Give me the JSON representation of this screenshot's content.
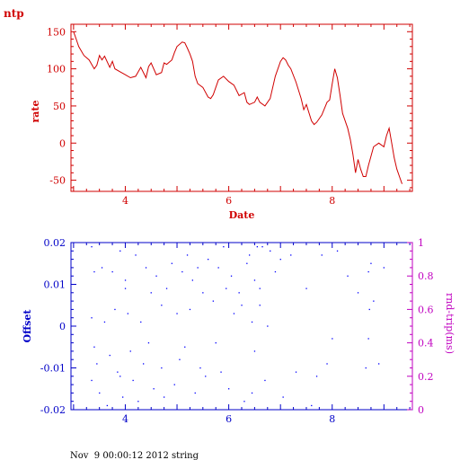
{
  "colors": {
    "top_axes": "#d00000",
    "bottom_axes": "#0000c8",
    "right_axis": "#c000c0",
    "points": "#0000ff",
    "footer": "#000000"
  },
  "header": {
    "corner_label": "ntp"
  },
  "footer": {
    "caption": "Nov  9 00:00:12 2012 string"
  },
  "chart_data": [
    {
      "type": "line",
      "ylabel": "rate",
      "xlabel": "Date",
      "xlim": [
        2.95,
        9.55
      ],
      "ylim": [
        -65,
        160
      ],
      "x_ticks": [
        "4",
        "6",
        "8"
      ],
      "x_tick_values": [
        4,
        6,
        8
      ],
      "y_ticks": [
        "150",
        "100",
        "50",
        "0",
        "-50"
      ],
      "y_tick_values": [
        150,
        100,
        50,
        0,
        -50
      ],
      "series": [
        {
          "x": [
            3.0,
            3.05,
            3.1,
            3.2,
            3.3,
            3.4,
            3.45,
            3.5,
            3.55,
            3.6,
            3.7,
            3.75,
            3.8,
            3.9,
            4.0,
            4.1,
            4.2,
            4.3,
            4.4,
            4.45,
            4.5,
            4.6,
            4.7,
            4.75,
            4.8,
            4.9,
            4.95,
            5.0,
            5.1,
            5.15,
            5.2,
            5.25,
            5.3,
            5.35,
            5.4,
            5.5,
            5.6,
            5.65,
            5.7,
            5.8,
            5.9,
            6.0,
            6.1,
            6.2,
            6.3,
            6.35,
            6.4,
            6.5,
            6.55,
            6.6,
            6.7,
            6.8,
            6.9,
            7.0,
            7.05,
            7.1,
            7.15,
            7.2,
            7.3,
            7.4,
            7.45,
            7.5,
            7.6,
            7.65,
            7.7,
            7.8,
            7.9,
            7.95,
            8.0,
            8.05,
            8.1,
            8.15,
            8.2,
            8.3,
            8.35,
            8.4,
            8.45,
            8.5,
            8.55,
            8.6,
            8.65,
            8.7,
            8.8,
            8.9,
            9.0,
            9.05,
            9.1,
            9.15,
            9.2,
            9.25,
            9.3,
            9.35
          ],
          "y": [
            150,
            140,
            130,
            118,
            112,
            100,
            105,
            118,
            112,
            117,
            102,
            110,
            100,
            96,
            92,
            88,
            90,
            102,
            88,
            103,
            108,
            92,
            95,
            108,
            106,
            112,
            122,
            130,
            136,
            135,
            128,
            120,
            110,
            90,
            80,
            75,
            62,
            60,
            65,
            85,
            90,
            83,
            78,
            64,
            68,
            55,
            52,
            55,
            62,
            55,
            50,
            60,
            90,
            110,
            115,
            112,
            105,
            100,
            82,
            60,
            45,
            52,
            30,
            25,
            28,
            38,
            55,
            58,
            80,
            100,
            88,
            65,
            40,
            20,
            5,
            -15,
            -40,
            -22,
            -35,
            -45,
            -45,
            -30,
            -5,
            0,
            -5,
            10,
            20,
            0,
            -20,
            -35,
            -45,
            -55
          ]
        }
      ]
    },
    {
      "type": "scatter",
      "ylabel": "Offset",
      "y2label": "rnd-trip(ms)",
      "xlim": [
        2.95,
        9.55
      ],
      "ylim": [
        -0.02,
        0.02
      ],
      "y2lim": [
        0,
        1
      ],
      "x_ticks": [
        "4",
        "6",
        "8"
      ],
      "x_tick_values": [
        4,
        6,
        8
      ],
      "y_ticks": [
        "0.02",
        "0.01",
        "0",
        "-0.01",
        "-0.02"
      ],
      "y_tick_values": [
        0.02,
        0.01,
        0,
        -0.01,
        -0.02
      ],
      "y2_ticks": [
        "1",
        "0.8",
        "0.6",
        "0.4",
        "0.2",
        "0"
      ],
      "y2_tick_values": [
        1,
        0.8,
        0.6,
        0.4,
        0.2,
        0
      ],
      "series": [
        {
          "x": [
            3.35,
            3.4,
            3.35,
            3.4,
            3.45,
            3.35,
            3.55,
            3.5,
            3.6,
            3.75,
            3.65,
            3.8,
            3.7,
            3.85,
            3.9,
            3.95,
            4.0,
            4.05,
            3.9,
            4.0,
            4.1,
            4.2,
            4.15,
            4.3,
            4.25,
            4.4,
            4.35,
            4.5,
            4.45,
            4.55,
            4.6,
            4.7,
            4.75,
            4.8,
            4.7,
            4.9,
            4.95,
            5.0,
            5.1,
            5.05,
            5.2,
            5.15,
            5.3,
            5.35,
            5.25,
            5.4,
            5.5,
            5.45,
            5.6,
            5.55,
            5.7,
            5.75,
            5.8,
            5.9,
            5.85,
            5.95,
            6.05,
            6.1,
            6.0,
            6.2,
            6.25,
            6.3,
            6.35,
            6.4,
            6.45,
            6.5,
            6.55,
            6.6,
            6.65,
            6.7,
            6.75,
            6.6,
            6.5,
            6.45,
            6.8,
            6.9,
            7.0,
            7.05,
            7.2,
            7.3,
            7.5,
            7.6,
            7.7,
            7.8,
            7.9,
            8.0,
            8.1,
            8.3,
            8.5,
            8.65,
            8.7,
            8.72,
            8.7,
            8.75,
            8.8,
            8.9,
            9.0
          ],
          "y": [
            0.019,
            0.013,
            0.002,
            -0.005,
            -0.009,
            -0.013,
            0.014,
            -0.016,
            0.001,
            0.013,
            -0.019,
            0.004,
            -0.007,
            -0.011,
            0.018,
            -0.017,
            0.011,
            0.003,
            -0.012,
            0.009,
            -0.006,
            0.017,
            -0.013,
            0.001,
            -0.018,
            0.014,
            -0.009,
            0.008,
            -0.004,
            -0.015,
            0.012,
            0.005,
            -0.017,
            0.009,
            -0.01,
            0.015,
            -0.014,
            0.003,
            0.013,
            -0.008,
            0.017,
            -0.005,
            0.011,
            -0.016,
            0.004,
            0.014,
            0.008,
            -0.01,
            0.016,
            -0.012,
            0.006,
            -0.004,
            0.014,
            0.019,
            -0.011,
            0.009,
            0.012,
            0.003,
            -0.015,
            0.008,
            0.005,
            -0.018,
            0.015,
            0.017,
            0.001,
            0.011,
            0.019,
            0.005,
            0.019,
            -0.013,
            0.0,
            0.009,
            -0.006,
            -0.016,
            0.018,
            0.013,
            0.016,
            -0.017,
            0.017,
            -0.011,
            0.009,
            -0.019,
            -0.012,
            0.017,
            -0.009,
            -0.003,
            0.018,
            0.012,
            0.008,
            -0.01,
            0.013,
            0.004,
            -0.003,
            0.015,
            0.006,
            -0.009,
            0.014
          ]
        }
      ]
    }
  ]
}
